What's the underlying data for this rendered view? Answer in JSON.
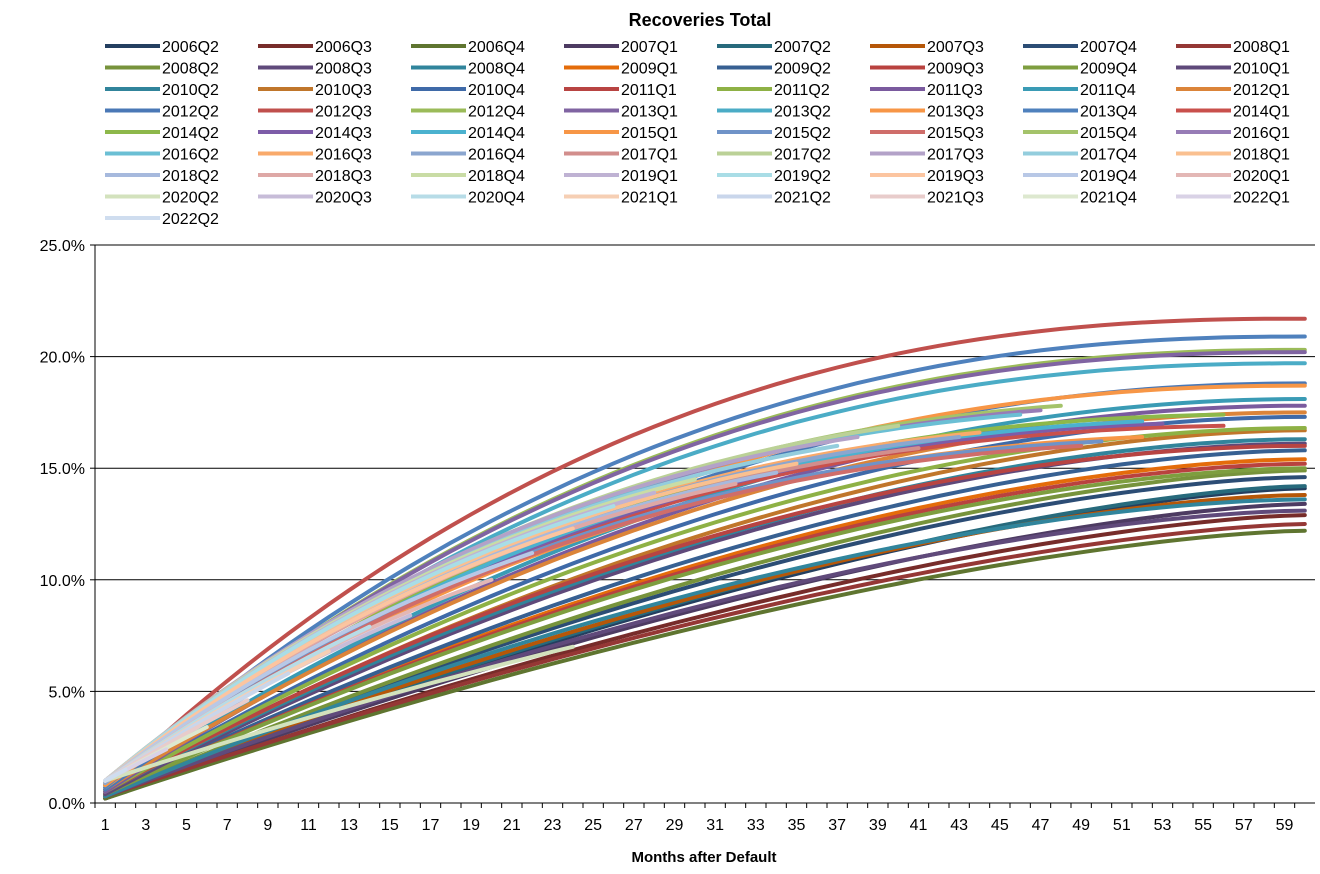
{
  "chart_data": {
    "type": "line",
    "title": "Recoveries Total",
    "xlabel": "Months after Default",
    "ylabel": "",
    "x_tick_labels": [
      "1",
      "3",
      "5",
      "7",
      "9",
      "11",
      "13",
      "15",
      "17",
      "19",
      "21",
      "23",
      "25",
      "27",
      "29",
      "31",
      "33",
      "35",
      "37",
      "39",
      "41",
      "43",
      "45",
      "47",
      "49",
      "51",
      "53",
      "55",
      "57",
      "59"
    ],
    "y_tick_labels": [
      "0.0%",
      "5.0%",
      "10.0%",
      "15.0%",
      "20.0%",
      "25.0%"
    ],
    "xlim": [
      1,
      60
    ],
    "ylim": [
      0,
      25
    ],
    "grid": "horizontal",
    "legend_position": "top",
    "series_values_note": "",
    "series": [
      {
        "name": "2006Q2",
        "color": "#243F60",
        "months": 60,
        "start": 0.2,
        "end": 14.1,
        "curv": 1.5
      },
      {
        "name": "2006Q3",
        "color": "#772C2A",
        "months": 60,
        "start": 0.2,
        "end": 12.9,
        "curv": 1.5
      },
      {
        "name": "2006Q4",
        "color": "#5F7530",
        "months": 60,
        "start": 0.2,
        "end": 12.2,
        "curv": 1.5
      },
      {
        "name": "2007Q1",
        "color": "#4D3B62",
        "months": 60,
        "start": 0.3,
        "end": 13.4,
        "curv": 1.5
      },
      {
        "name": "2007Q2",
        "color": "#276A7C",
        "months": 60,
        "start": 0.3,
        "end": 14.2,
        "curv": 1.5
      },
      {
        "name": "2007Q3",
        "color": "#B65708",
        "months": 60,
        "start": 0.3,
        "end": 13.8,
        "curv": 1.6
      },
      {
        "name": "2007Q4",
        "color": "#2C4D75",
        "months": 60,
        "start": 0.3,
        "end": 14.6,
        "curv": 1.6
      },
      {
        "name": "2008Q1",
        "color": "#953735",
        "months": 60,
        "start": 0.3,
        "end": 12.5,
        "curv": 1.5
      },
      {
        "name": "2008Q2",
        "color": "#77933C",
        "months": 60,
        "start": 0.3,
        "end": 14.9,
        "curv": 1.6
      },
      {
        "name": "2008Q3",
        "color": "#604A7B",
        "months": 60,
        "start": 0.3,
        "end": 13.1,
        "curv": 1.6
      },
      {
        "name": "2008Q4",
        "color": "#31859C",
        "months": 60,
        "start": 0.3,
        "end": 13.6,
        "curv": 1.7
      },
      {
        "name": "2009Q1",
        "color": "#E46C0A",
        "months": 60,
        "start": 0.4,
        "end": 15.4,
        "curv": 1.7
      },
      {
        "name": "2009Q2",
        "color": "#376092",
        "months": 60,
        "start": 0.4,
        "end": 15.8,
        "curv": 1.7
      },
      {
        "name": "2009Q3",
        "color": "#B9423F",
        "months": 60,
        "start": 0.4,
        "end": 15.2,
        "curv": 1.7
      },
      {
        "name": "2009Q4",
        "color": "#7E9E3F",
        "months": 60,
        "start": 0.4,
        "end": 15.0,
        "curv": 1.7
      },
      {
        "name": "2010Q1",
        "color": "#5F497A",
        "months": 60,
        "start": 0.4,
        "end": 16.1,
        "curv": 1.8
      },
      {
        "name": "2010Q2",
        "color": "#31849B",
        "months": 60,
        "start": 0.5,
        "end": 16.3,
        "curv": 1.8
      },
      {
        "name": "2010Q3",
        "color": "#C0762B",
        "months": 60,
        "start": 0.5,
        "end": 16.7,
        "curv": 1.8
      },
      {
        "name": "2010Q4",
        "color": "#3F6AA8",
        "months": 60,
        "start": 0.5,
        "end": 17.3,
        "curv": 1.9
      },
      {
        "name": "2011Q1",
        "color": "#B84442",
        "months": 60,
        "start": 0.5,
        "end": 16.0,
        "curv": 1.9
      },
      {
        "name": "2011Q2",
        "color": "#8EB145",
        "months": 60,
        "start": 0.5,
        "end": 16.8,
        "curv": 1.9
      },
      {
        "name": "2011Q3",
        "color": "#7A5A9E",
        "months": 60,
        "start": 0.5,
        "end": 17.8,
        "curv": 2.0
      },
      {
        "name": "2011Q4",
        "color": "#3A9BB5",
        "months": 60,
        "start": 0.6,
        "end": 18.1,
        "curv": 2.0
      },
      {
        "name": "2012Q1",
        "color": "#DB8439",
        "months": 60,
        "start": 0.6,
        "end": 17.5,
        "curv": 2.0
      },
      {
        "name": "2012Q2",
        "color": "#4A78B6",
        "months": 60,
        "start": 0.6,
        "end": 18.8,
        "curv": 2.1
      },
      {
        "name": "2012Q3",
        "color": "#C0504D",
        "months": 60,
        "start": 0.7,
        "end": 21.7,
        "curv": 2.4
      },
      {
        "name": "2012Q4",
        "color": "#9BBB59",
        "months": 60,
        "start": 0.7,
        "end": 20.3,
        "curv": 2.3
      },
      {
        "name": "2013Q1",
        "color": "#8064A2",
        "months": 60,
        "start": 0.7,
        "end": 20.2,
        "curv": 2.3
      },
      {
        "name": "2013Q2",
        "color": "#4BACC6",
        "months": 60,
        "start": 0.7,
        "end": 19.7,
        "curv": 2.3
      },
      {
        "name": "2013Q3",
        "color": "#F79646",
        "months": 60,
        "start": 0.7,
        "end": 18.7,
        "curv": 2.2
      },
      {
        "name": "2013Q4",
        "color": "#4F81BD",
        "months": 60,
        "start": 0.7,
        "end": 20.9,
        "curv": 2.3
      },
      {
        "name": "2014Q1",
        "color": "#C9504C",
        "months": 56,
        "start": 0.8,
        "end": 16.9,
        "curv": 2.4
      },
      {
        "name": "2014Q2",
        "color": "#8DB84A",
        "months": 56,
        "start": 0.8,
        "end": 17.4,
        "curv": 2.4
      },
      {
        "name": "2014Q3",
        "color": "#7D5CA8",
        "months": 53,
        "start": 0.8,
        "end": 17.0,
        "curv": 2.4
      },
      {
        "name": "2014Q4",
        "color": "#4BB2CF",
        "months": 52,
        "start": 0.8,
        "end": 17.1,
        "curv": 2.4
      },
      {
        "name": "2015Q1",
        "color": "#F79646",
        "months": 52,
        "start": 0.8,
        "end": 16.4,
        "curv": 2.4
      },
      {
        "name": "2015Q2",
        "color": "#6F93C8",
        "months": 50,
        "start": 0.9,
        "end": 16.2,
        "curv": 2.5
      },
      {
        "name": "2015Q3",
        "color": "#CF6D6A",
        "months": 49,
        "start": 0.9,
        "end": 16.0,
        "curv": 2.5
      },
      {
        "name": "2015Q4",
        "color": "#A4C36A",
        "months": 48,
        "start": 0.9,
        "end": 17.8,
        "curv": 2.5
      },
      {
        "name": "2016Q1",
        "color": "#977CB6",
        "months": 47,
        "start": 0.9,
        "end": 17.6,
        "curv": 2.5
      },
      {
        "name": "2016Q2",
        "color": "#6BBFD4",
        "months": 46,
        "start": 0.9,
        "end": 17.4,
        "curv": 2.6
      },
      {
        "name": "2016Q3",
        "color": "#F9AA6B",
        "months": 44,
        "start": 0.9,
        "end": 16.6,
        "curv": 2.6
      },
      {
        "name": "2016Q4",
        "color": "#8BA6CF",
        "months": 43,
        "start": 0.9,
        "end": 16.4,
        "curv": 2.6
      },
      {
        "name": "2017Q1",
        "color": "#D28E8C",
        "months": 41,
        "start": 1.0,
        "end": 15.9,
        "curv": 2.6
      },
      {
        "name": "2017Q2",
        "color": "#BBD197",
        "months": 40,
        "start": 1.0,
        "end": 16.9,
        "curv": 2.6
      },
      {
        "name": "2017Q3",
        "color": "#B3A2C8",
        "months": 38,
        "start": 1.0,
        "end": 16.4,
        "curv": 2.7
      },
      {
        "name": "2017Q4",
        "color": "#93CDDD",
        "months": 37,
        "start": 1.0,
        "end": 16.0,
        "curv": 2.7
      },
      {
        "name": "2018Q1",
        "color": "#FAC090",
        "months": 35,
        "start": 1.0,
        "end": 15.2,
        "curv": 2.7
      },
      {
        "name": "2018Q2",
        "color": "#A6B9DD",
        "months": 34,
        "start": 1.0,
        "end": 14.8,
        "curv": 2.7
      },
      {
        "name": "2018Q3",
        "color": "#DEA8A6",
        "months": 32,
        "start": 1.0,
        "end": 14.3,
        "curv": 2.7
      },
      {
        "name": "2018Q4",
        "color": "#C9DCA5",
        "months": 30,
        "start": 1.0,
        "end": 14.5,
        "curv": 2.8
      },
      {
        "name": "2019Q1",
        "color": "#BFB2D3",
        "months": 28,
        "start": 1.0,
        "end": 13.9,
        "curv": 2.8
      },
      {
        "name": "2019Q2",
        "color": "#A9DDE6",
        "months": 26,
        "start": 1.0,
        "end": 13.3,
        "curv": 2.8
      },
      {
        "name": "2019Q3",
        "color": "#FCC5A0",
        "months": 24,
        "start": 1.0,
        "end": 12.3,
        "curv": 2.8
      },
      {
        "name": "2019Q4",
        "color": "#B8C8E6",
        "months": 22,
        "start": 1.0,
        "end": 11.2,
        "curv": 2.8
      },
      {
        "name": "2020Q1",
        "color": "#E3B7B5",
        "months": 20,
        "start": 1.0,
        "end": 10.0,
        "curv": 2.8
      },
      {
        "name": "2020Q2",
        "color": "#D3E2BD",
        "months": 24,
        "start": 1.0,
        "end": 7.0,
        "curv": 1.6
      },
      {
        "name": "2020Q3",
        "color": "#C7BCD8",
        "months": 16,
        "start": 1.0,
        "end": 8.4,
        "curv": 2.6
      },
      {
        "name": "2020Q4",
        "color": "#B7DCE7",
        "months": 14,
        "start": 1.0,
        "end": 7.9,
        "curv": 2.5
      },
      {
        "name": "2021Q1",
        "color": "#F6CFB4",
        "months": 12,
        "start": 1.0,
        "end": 6.8,
        "curv": 2.4
      },
      {
        "name": "2021Q2",
        "color": "#C9D6EB",
        "months": 10,
        "start": 1.0,
        "end": 5.8,
        "curv": 2.3
      },
      {
        "name": "2021Q3",
        "color": "#E8CCCB",
        "months": 8,
        "start": 1.0,
        "end": 4.6,
        "curv": 2.2
      },
      {
        "name": "2021Q4",
        "color": "#DDE8CF",
        "months": 6,
        "start": 1.0,
        "end": 3.4,
        "curv": 2.0
      },
      {
        "name": "2022Q1",
        "color": "#D9D2E6",
        "months": 4,
        "start": 1.0,
        "end": 2.4,
        "curv": 1.8
      },
      {
        "name": "2022Q2",
        "color": "#CFDDEF",
        "months": 2,
        "start": 1.0,
        "end": 1.5,
        "curv": 1.5
      }
    ]
  }
}
